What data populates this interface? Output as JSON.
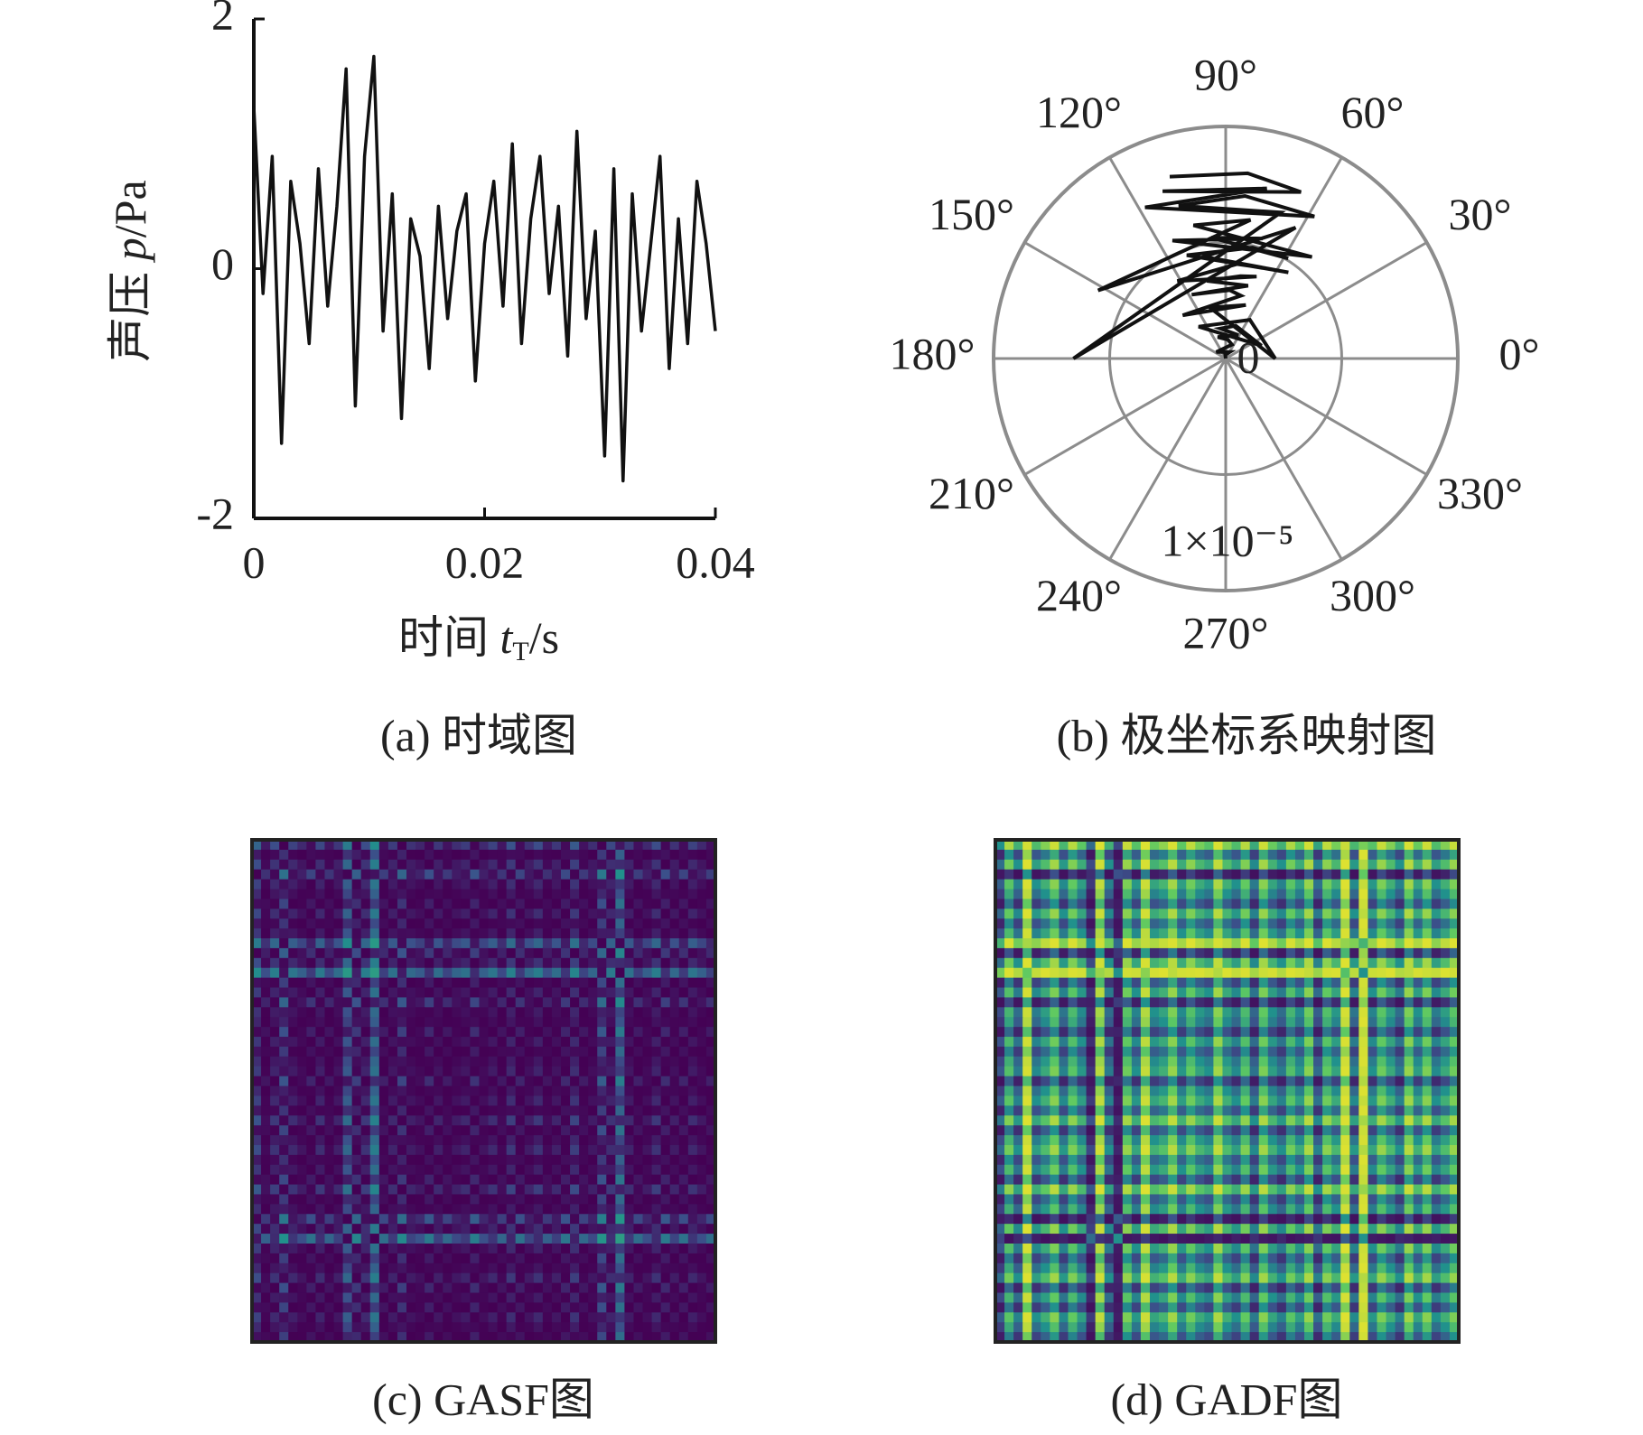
{
  "chart_data": [
    {
      "type": "line",
      "title": "(a) 时域图",
      "color": "#111111",
      "ylabel": [
        "声压 ",
        "p",
        "/Pa"
      ],
      "xlabel": [
        "时间 ",
        "t",
        "T",
        "/s"
      ],
      "x": [
        0,
        0.0008,
        0.0016,
        0.0024,
        0.0032,
        0.004,
        0.0048,
        0.0056,
        0.0064,
        0.0072,
        0.008,
        0.0088,
        0.0096,
        0.0104,
        0.0112,
        0.012,
        0.0128,
        0.0136,
        0.0144,
        0.0152,
        0.016,
        0.0168,
        0.0176,
        0.0184,
        0.0192,
        0.02,
        0.0208,
        0.0216,
        0.0224,
        0.0232,
        0.024,
        0.0248,
        0.0256,
        0.0264,
        0.0272,
        0.028,
        0.0288,
        0.0296,
        0.0304,
        0.0312,
        0.032,
        0.0328,
        0.0336,
        0.0344,
        0.0352,
        0.036,
        0.0368,
        0.0376,
        0.0384,
        0.0392,
        0.04
      ],
      "values": [
        1.3,
        -0.2,
        0.9,
        -1.4,
        0.7,
        0.2,
        -0.6,
        0.8,
        -0.3,
        0.5,
        1.6,
        -1.1,
        0.9,
        1.7,
        -0.5,
        0.6,
        -1.2,
        0.4,
        0.1,
        -0.8,
        0.5,
        -0.4,
        0.3,
        0.6,
        -0.9,
        0.2,
        0.7,
        -0.3,
        1.0,
        -0.6,
        0.4,
        0.9,
        -0.2,
        0.5,
        -0.7,
        1.1,
        -0.4,
        0.3,
        -1.5,
        0.8,
        -1.7,
        0.6,
        -0.5,
        0.2,
        0.9,
        -0.8,
        0.4,
        -0.6,
        0.7,
        0.2,
        -0.5
      ],
      "xlim": [
        0,
        0.04
      ],
      "xticks": [
        0,
        0.02,
        0.04
      ],
      "ylim": [
        -2,
        2
      ],
      "yticks": [
        -2,
        0,
        2
      ]
    },
    {
      "type": "polar",
      "title": "(b) 极坐标系映射图",
      "color": "#111111",
      "grid_color": "#8c8c8c",
      "angle_ticks": [
        {
          "value": 0,
          "label": "0°"
        },
        {
          "value": 30,
          "label": "30°"
        },
        {
          "value": 60,
          "label": "60°"
        },
        {
          "value": 90,
          "label": "90°"
        },
        {
          "value": 120,
          "label": "120°"
        },
        {
          "value": 150,
          "label": "150°"
        },
        {
          "value": 180,
          "label": "180°"
        },
        {
          "value": 210,
          "label": "210°"
        },
        {
          "value": 240,
          "label": "240°"
        },
        {
          "value": 270,
          "label": "270°"
        },
        {
          "value": 300,
          "label": "300°"
        },
        {
          "value": 330,
          "label": "330°"
        }
      ],
      "rlim": [
        0,
        2e-05
      ],
      "rticks": [
        {
          "value": 0,
          "label": "0"
        },
        {
          "value": 1e-05,
          "label": "1×10⁻⁵"
        }
      ]
    },
    {
      "type": "gasf",
      "title": "(c) GASF图",
      "colormap": [
        "#440154",
        "#3b528b",
        "#21918c",
        "#5ec962",
        "#fde725"
      ]
    },
    {
      "type": "gadf",
      "title": "(d) GADF图",
      "colormap": [
        "#440154",
        "#3b528b",
        "#21918c",
        "#5ec962",
        "#fde725"
      ]
    }
  ]
}
